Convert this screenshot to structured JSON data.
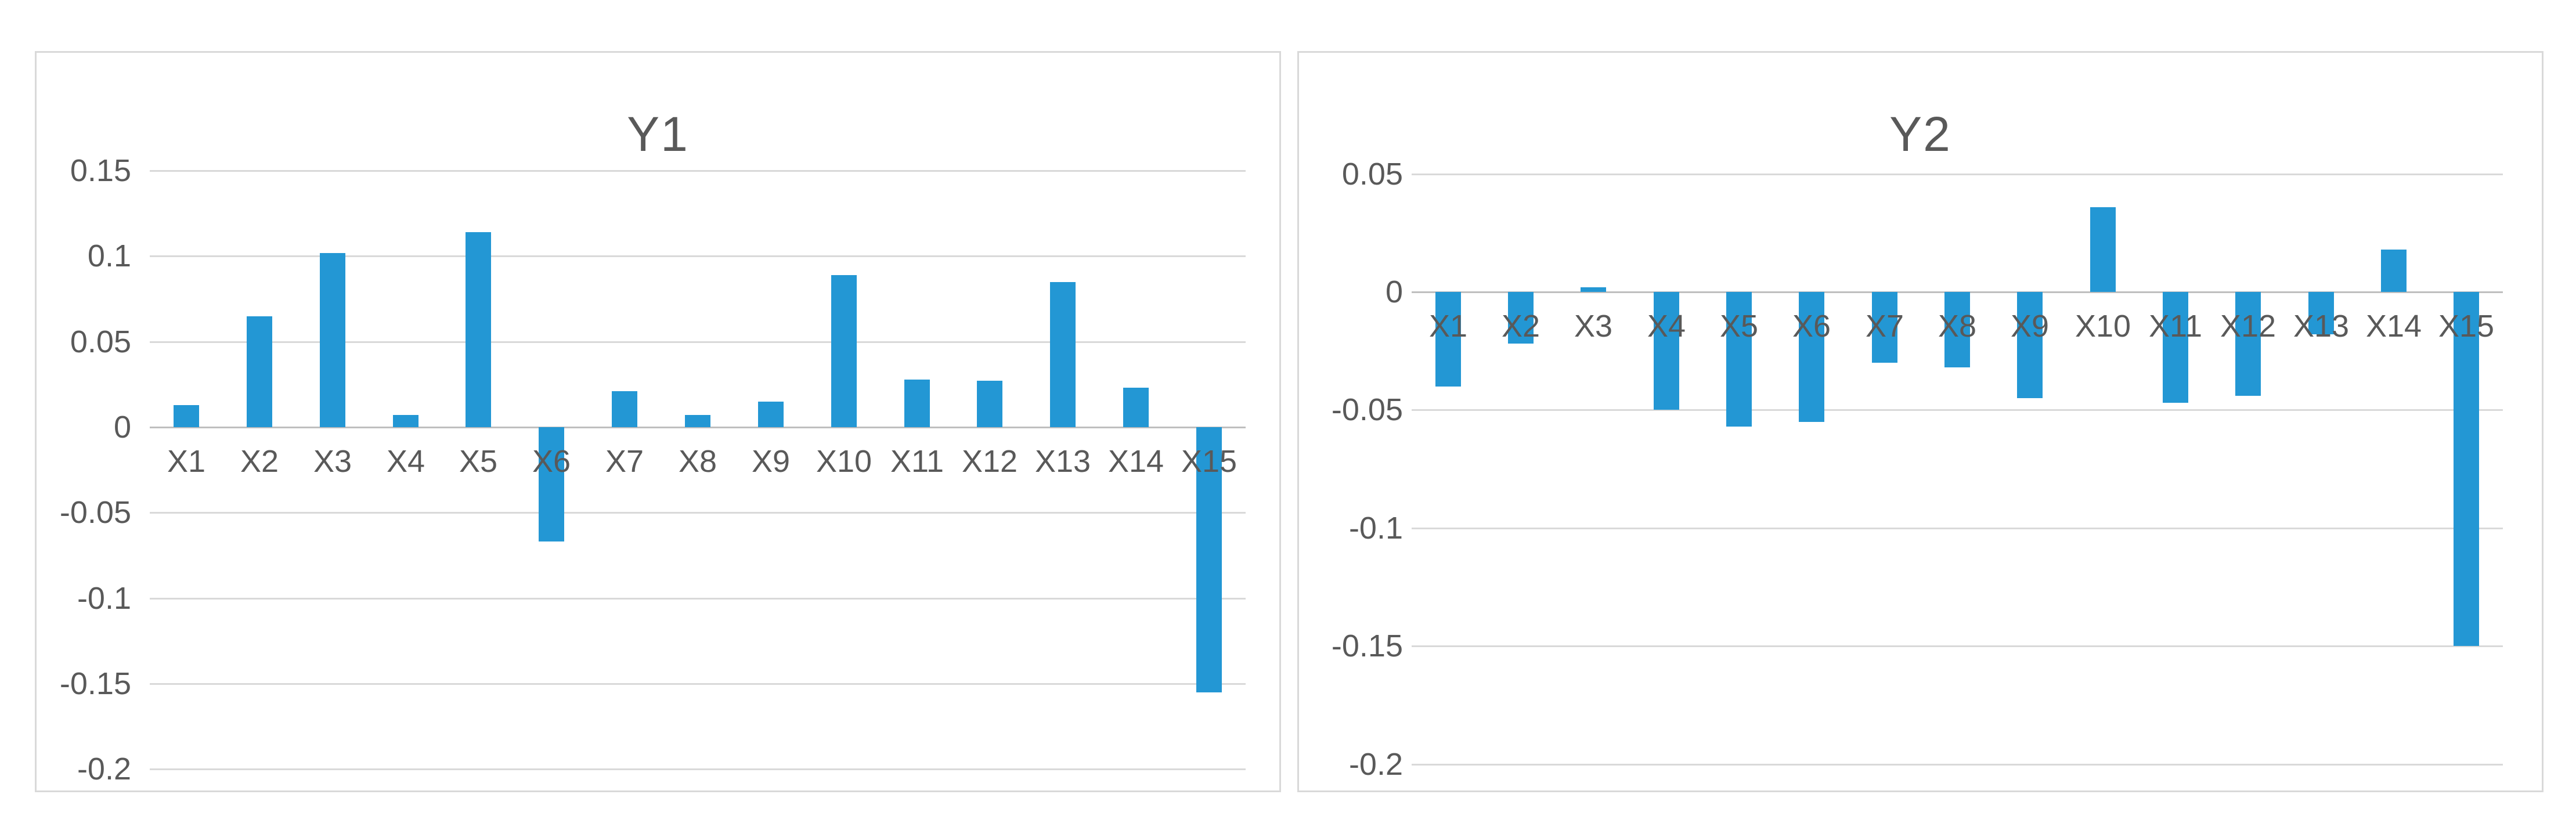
{
  "page": {
    "background_color": "#ffffff"
  },
  "colors": {
    "bar_fill": "#2397d4",
    "gridline": "#d9d9d9",
    "zero_axis_line": "#bfbfbf",
    "text": "#595959",
    "chart_border": "#d9d9d9",
    "chart_background": "#ffffff"
  },
  "chart_data": [
    {
      "type": "bar",
      "title": "Y1",
      "categories": [
        "X1",
        "X2",
        "X3",
        "X4",
        "X5",
        "X6",
        "X7",
        "X8",
        "X9",
        "X10",
        "X11",
        "X12",
        "X13",
        "X14",
        "X15"
      ],
      "values": [
        0.013,
        0.065,
        0.102,
        0.007,
        0.114,
        -0.067,
        0.021,
        0.007,
        0.015,
        0.089,
        0.028,
        0.027,
        0.085,
        0.023,
        -0.155
      ],
      "yticks": [
        0.15,
        0.1,
        0.05,
        0,
        -0.05,
        -0.1,
        -0.15,
        -0.2
      ],
      "ylim": [
        -0.2,
        0.15
      ],
      "xlabel": "",
      "ylabel": "",
      "grid": true,
      "legend": "none",
      "category_labels_position": "below-zero-axis"
    },
    {
      "type": "bar",
      "title": "Y2",
      "categories": [
        "X1",
        "X2",
        "X3",
        "X4",
        "X5",
        "X6",
        "X7",
        "X8",
        "X9",
        "X10",
        "X11",
        "X12",
        "X13",
        "X14",
        "X15"
      ],
      "values": [
        -0.04,
        -0.022,
        0.002,
        -0.05,
        -0.057,
        -0.055,
        -0.03,
        -0.032,
        -0.045,
        0.036,
        -0.047,
        -0.044,
        -0.018,
        0.018,
        -0.15
      ],
      "yticks": [
        0.05,
        0,
        -0.05,
        -0.1,
        -0.15,
        -0.2
      ],
      "ylim": [
        -0.2,
        0.05
      ],
      "xlabel": "",
      "ylabel": "",
      "grid": true,
      "legend": "none",
      "category_labels_position": "below-zero-axis"
    }
  ]
}
